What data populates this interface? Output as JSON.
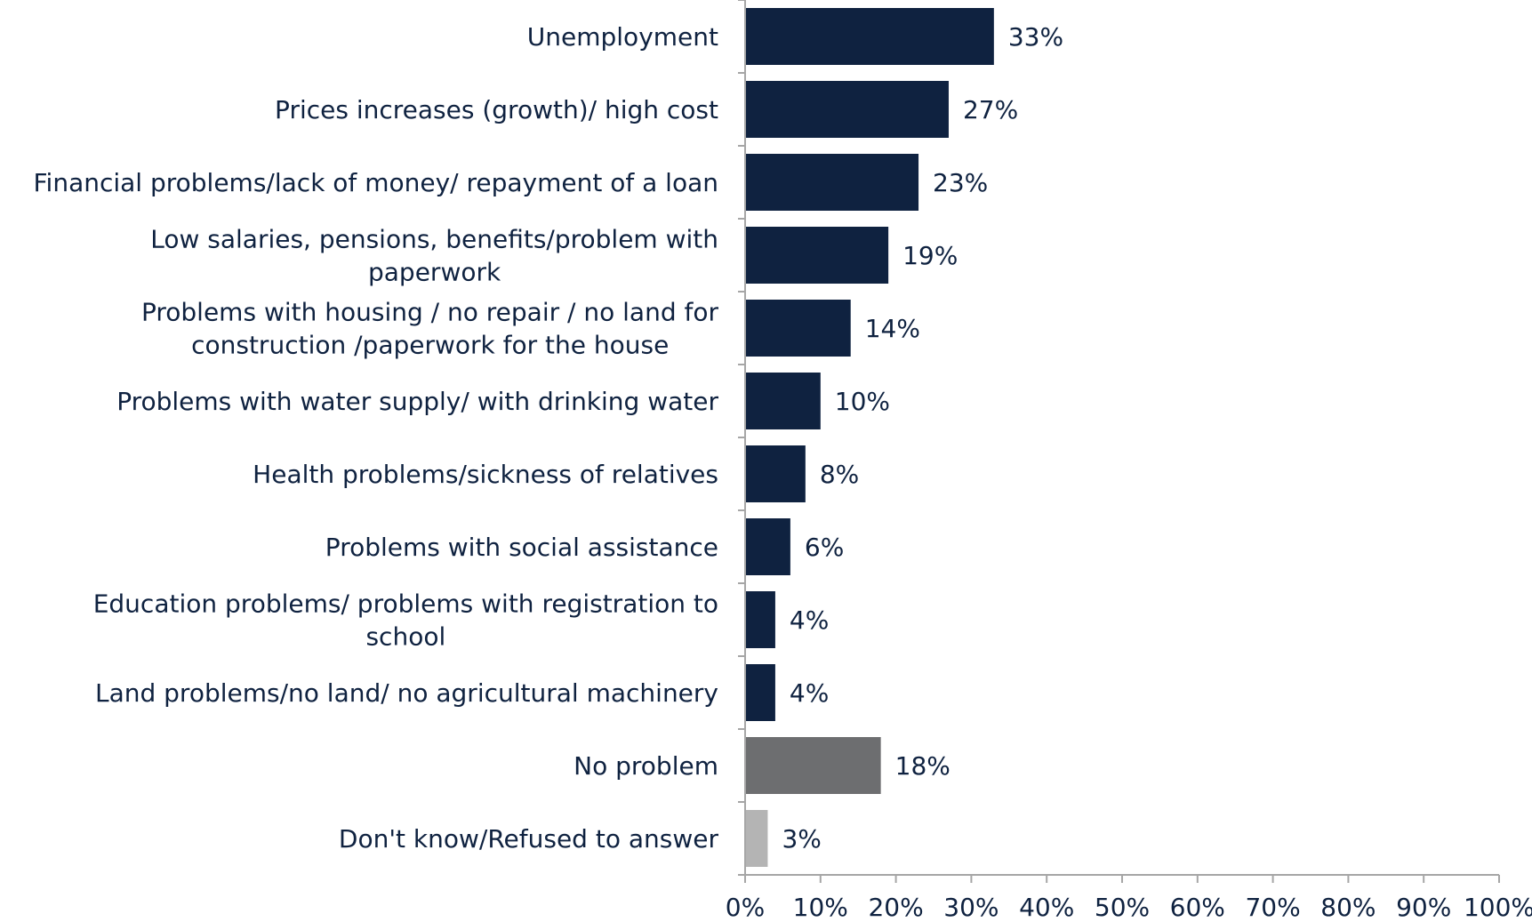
{
  "chart_data": {
    "type": "bar",
    "orientation": "horizontal",
    "categories": [
      [
        "Unemployment"
      ],
      [
        "Prices increases (growth)/ high cost"
      ],
      [
        "Financial problems/lack of money/ repayment of a loan"
      ],
      [
        "Low salaries, pensions, benefits/problem with",
        "paperwork"
      ],
      [
        "Problems with housing / no repair / no land for",
        "construction /paperwork for the house"
      ],
      [
        "Problems with water supply/ with drinking water"
      ],
      [
        "Health problems/sickness of relatives"
      ],
      [
        "Problems with social assistance"
      ],
      [
        "Education problems/ problems with registration to",
        "school"
      ],
      [
        "Land problems/no land/ no agricultural machinery"
      ],
      [
        "No problem"
      ],
      [
        "Don't know/Refused to answer"
      ]
    ],
    "values": [
      33,
      27,
      23,
      19,
      14,
      10,
      8,
      6,
      4,
      4,
      18,
      3
    ],
    "value_labels": [
      "33%",
      "27%",
      "23%",
      "19%",
      "14%",
      "10%",
      "8%",
      "6%",
      "4%",
      "4%",
      "18%",
      "3%"
    ],
    "bar_colors": [
      "#0f2240",
      "#0f2240",
      "#0f2240",
      "#0f2240",
      "#0f2240",
      "#0f2240",
      "#0f2240",
      "#0f2240",
      "#0f2240",
      "#0f2240",
      "#6d6e70",
      "#b4b4b4"
    ],
    "xlim": [
      0,
      100
    ],
    "x_ticks": [
      0,
      10,
      20,
      30,
      40,
      50,
      60,
      70,
      80,
      90,
      100
    ],
    "x_tick_labels": [
      "0%",
      "10%",
      "20%",
      "30%",
      "40%",
      "50%",
      "60%",
      "70%",
      "80%",
      "90%",
      "100%"
    ],
    "title": "",
    "xlabel": "",
    "ylabel": "",
    "grid": false,
    "legend": "none",
    "colors": {
      "text": "#0f2240",
      "axis": "#a6a6a6"
    }
  }
}
